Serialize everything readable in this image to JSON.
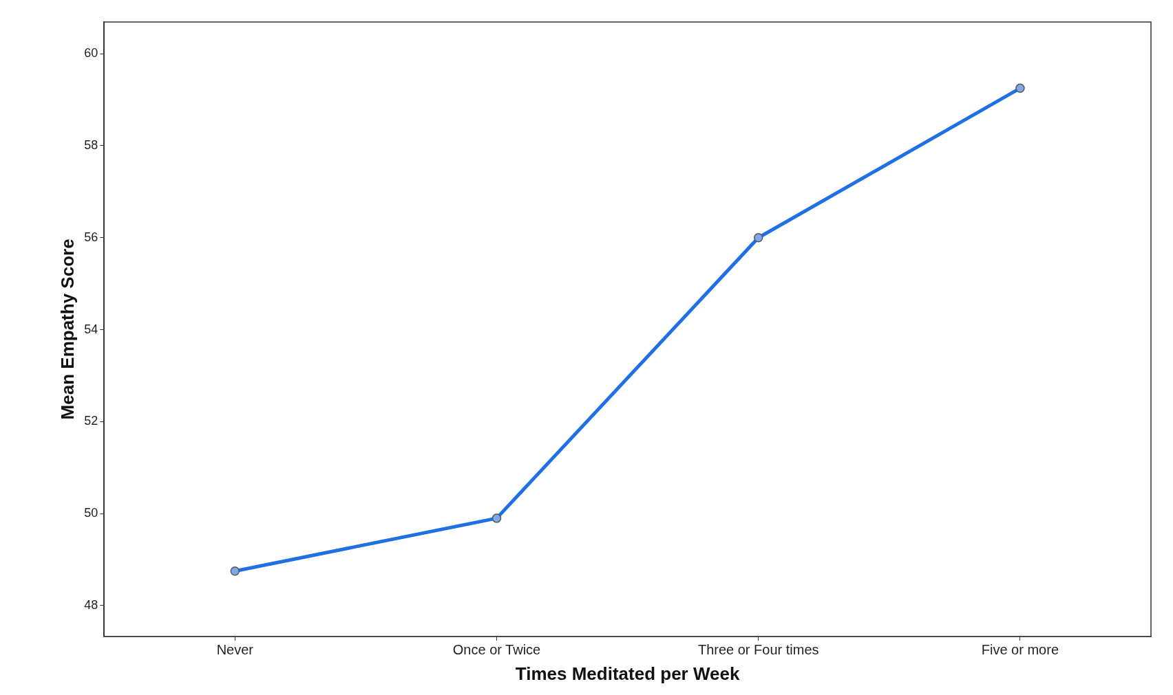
{
  "chart_data": {
    "type": "line",
    "xlabel": "Times Meditated per Week",
    "ylabel": "Mean Empathy Score",
    "categories": [
      "Never",
      "Once or Twice",
      "Three or Four times",
      "Five or more"
    ],
    "series": [
      {
        "color": "#1f6fe5",
        "values": [
          48.75,
          49.9,
          56.0,
          59.25
        ]
      }
    ],
    "ylim": [
      47.33,
      60.69
    ],
    "yticks": [
      48,
      50,
      52,
      54,
      56,
      58,
      60
    ],
    "grid": false,
    "legend": false,
    "marker": "circle",
    "line_style": "solid"
  }
}
